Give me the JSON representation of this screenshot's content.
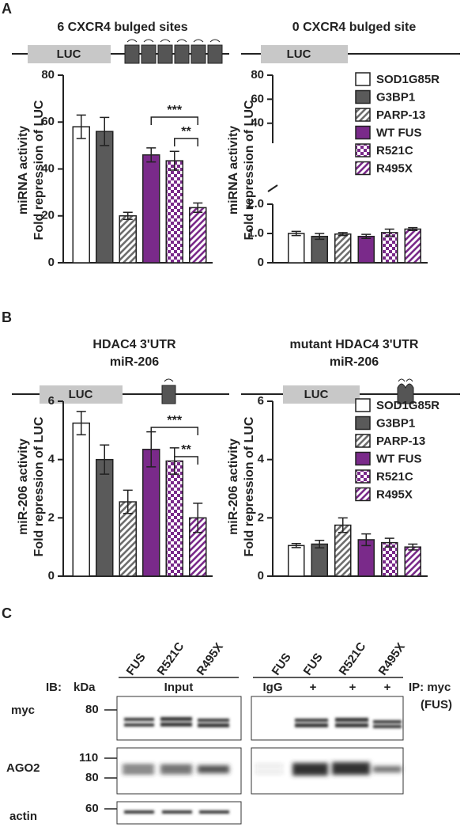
{
  "panel_labels": [
    "A",
    "B",
    "C"
  ],
  "groups": [
    {
      "name": "SOD1G85R",
      "color": "#ffffff",
      "pattern": "solid"
    },
    {
      "name": "G3BP1",
      "color": "#5a5a5a",
      "pattern": "solid"
    },
    {
      "name": "PARP-13",
      "color": "#6e6e6e",
      "pattern": "stripes"
    },
    {
      "name": "WT FUS",
      "color": "#7a2a8a",
      "pattern": "solid"
    },
    {
      "name": "R521C",
      "color": "#7a2a8a",
      "pattern": "checks"
    },
    {
      "name": "R495X",
      "color": "#7a2a8a",
      "pattern": "stripes"
    }
  ],
  "chart_data": [
    {
      "type": "bar",
      "title": [
        "6 CXCR4 bulged sites"
      ],
      "construct": "LUC",
      "ylabel": [
        "miRNA activity",
        "Fold repression of LUC"
      ],
      "values": [
        58,
        56,
        20,
        46,
        43.5,
        23.5
      ],
      "errors": [
        5,
        6,
        1.5,
        3,
        4,
        2
      ],
      "y_segments": [
        {
          "ylim": [
            0,
            80
          ],
          "yticks": [
            0,
            20,
            40,
            60,
            80
          ]
        }
      ],
      "comparisons": [
        {
          "label": "***",
          "between": [
            3,
            5
          ]
        },
        {
          "label": "**",
          "between": [
            4,
            5
          ]
        }
      ],
      "legend": false
    },
    {
      "type": "bar",
      "title": [
        "0 CXCR4 bulged site"
      ],
      "construct": "LUC",
      "ylabel": [
        "miRNA activity",
        "Fold repression of LUC"
      ],
      "values": [
        1.0,
        0.9,
        0.98,
        0.9,
        1.03,
        1.15
      ],
      "errors": [
        0.07,
        0.1,
        0.05,
        0.07,
        0.12,
        0.05
      ],
      "y_segments": [
        {
          "ylim": [
            0,
            2
          ],
          "yticks": [
            0,
            {
              "value": 1,
              "label": "1.0"
            },
            {
              "value": 2,
              "label": "2.0"
            }
          ]
        },
        {
          "ylim": [
            24,
            80
          ],
          "yticks": [
            40,
            60,
            80
          ]
        }
      ],
      "comparisons": [],
      "legend": true
    },
    {
      "type": "bar",
      "title": [
        "HDAC4 3'UTR",
        "miR-206"
      ],
      "construct": "LUC",
      "ylabel": [
        "miR-206 activity",
        "Fold repression of LUC"
      ],
      "values": [
        5.25,
        4.0,
        2.55,
        4.35,
        3.95,
        2.0
      ],
      "errors": [
        0.4,
        0.5,
        0.4,
        0.6,
        0.45,
        0.5
      ],
      "y_segments": [
        {
          "ylim": [
            0,
            6
          ],
          "yticks": [
            0,
            2,
            4,
            6
          ]
        }
      ],
      "comparisons": [
        {
          "label": "***",
          "between": [
            3,
            5
          ]
        },
        {
          "label": "**",
          "between": [
            4,
            5
          ]
        }
      ],
      "legend": false
    },
    {
      "type": "bar",
      "title": [
        "mutant HDAC4 3'UTR",
        "miR-206"
      ],
      "construct": "LUC",
      "ylabel": [
        "miR-206 activity",
        "Fold repression of LUC"
      ],
      "values": [
        1.05,
        1.1,
        1.75,
        1.25,
        1.15,
        1.0
      ],
      "errors": [
        0.07,
        0.13,
        0.25,
        0.2,
        0.15,
        0.1
      ],
      "y_segments": [
        {
          "ylim": [
            0,
            6
          ],
          "yticks": [
            0,
            2,
            4,
            6
          ]
        }
      ],
      "comparisons": [],
      "legend": true
    }
  ],
  "blot": {
    "ib_label": "IB:",
    "kda_label": "kDa",
    "input_label": "Input",
    "input_lanes": [
      "FUS",
      "R521C",
      "R495X"
    ],
    "ip_lanes": [
      "FUS",
      "FUS",
      "R521C",
      "R495X"
    ],
    "ip_row": [
      "IgG",
      "+",
      "+",
      "+"
    ],
    "ip_label": "IP: myc",
    "ip_target": "(FUS)",
    "rows": [
      {
        "name": "myc",
        "markers": [
          "80"
        ]
      },
      {
        "name": "AGO2",
        "markers": [
          "110",
          "80"
        ]
      },
      {
        "name": "actin",
        "markers": [
          "60"
        ]
      }
    ]
  }
}
